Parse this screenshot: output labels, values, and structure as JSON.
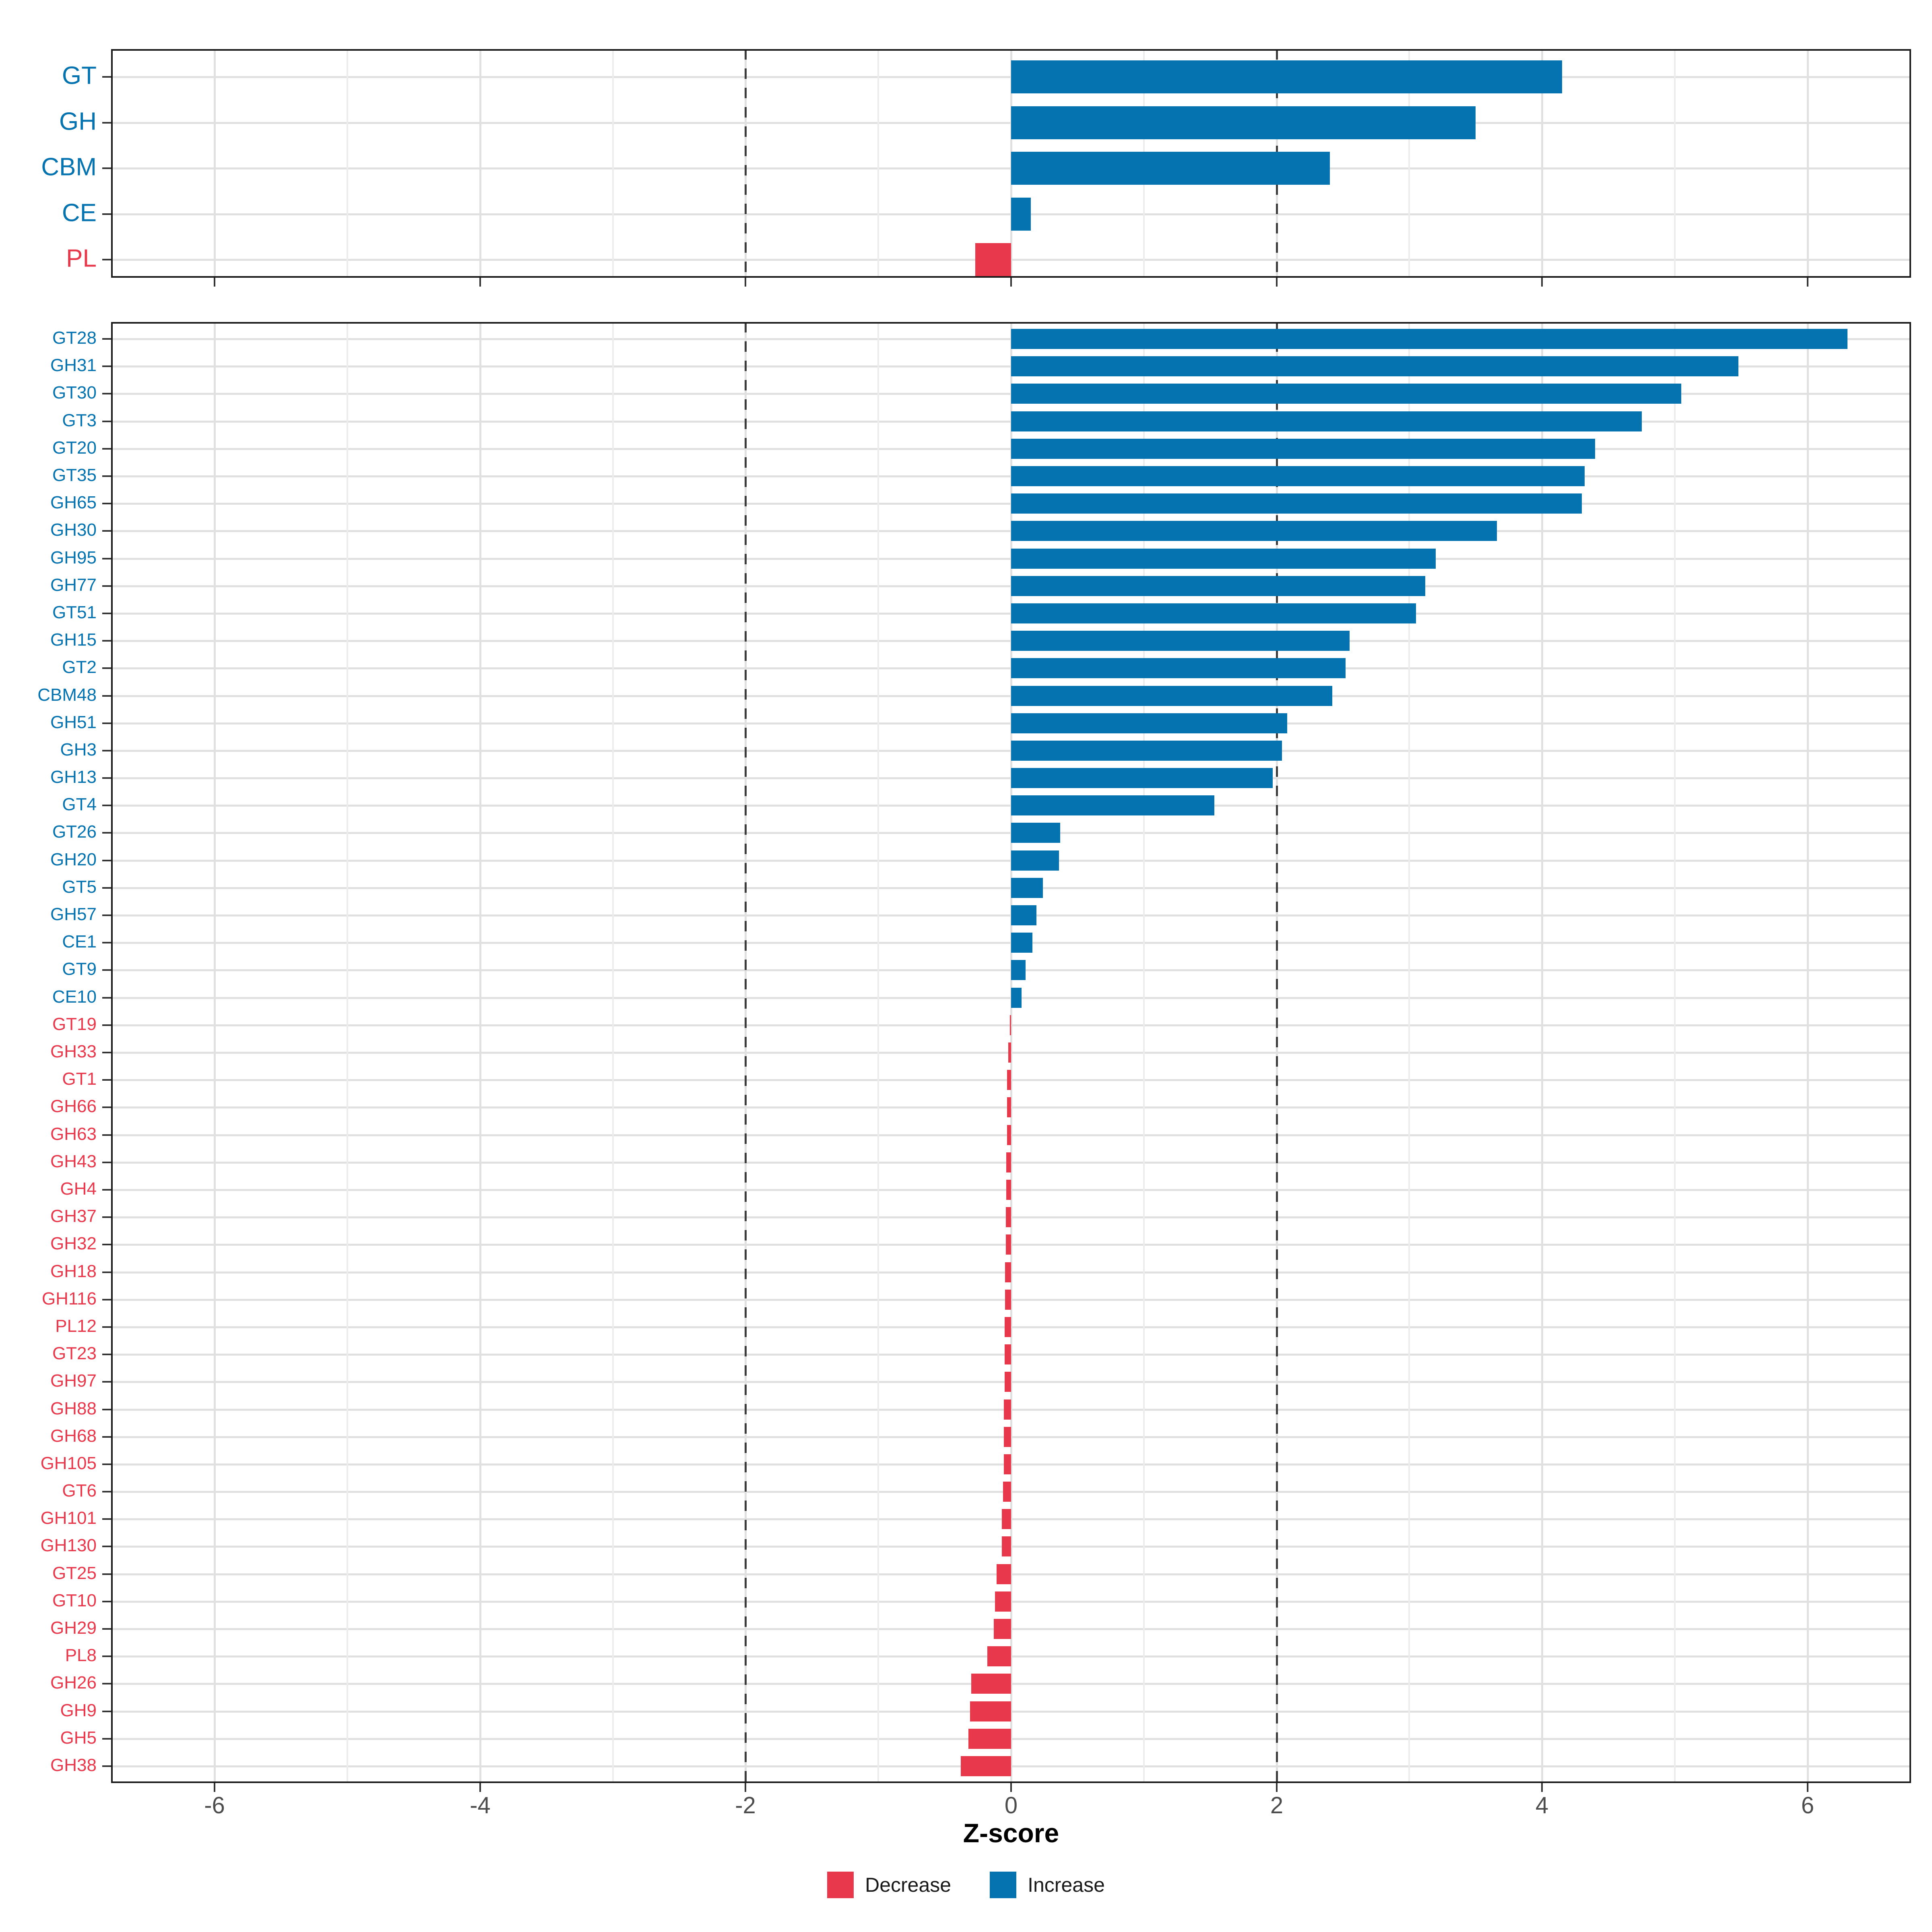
{
  "chart_data": {
    "type": "bar",
    "orientation": "horizontal",
    "xlabel": "Z-score",
    "x_ticks": [
      -6,
      -4,
      -2,
      0,
      2,
      4,
      6
    ],
    "x_minor_ticks": [
      -5,
      -3,
      -1,
      1,
      3,
      5
    ],
    "xlim": [
      -6.78,
      6.78
    ],
    "grid": true,
    "legend_position": "bottom",
    "dashed_vlines": [
      -2,
      2
    ],
    "colors": {
      "increase": "#0473B0",
      "decrease": "#E8394C",
      "axis_text": "#4D4D4D",
      "grid_major": "#E0E0E0",
      "grid_minor": "#ECECEC",
      "vline": "#3C3C3C",
      "border": "#1A1A1A"
    },
    "legend": {
      "items": [
        {
          "label": "Decrease",
          "color": "#E8394C"
        },
        {
          "label": "Increase",
          "color": "#0473B0"
        }
      ]
    },
    "panels": [
      {
        "name": "cazyme-classes",
        "rows": [
          {
            "label": "GT",
            "value": 4.15
          },
          {
            "label": "GH",
            "value": 3.5
          },
          {
            "label": "CBM",
            "value": 2.4
          },
          {
            "label": "CE",
            "value": 0.15
          },
          {
            "label": "PL",
            "value": -0.27
          }
        ]
      },
      {
        "name": "cazyme-families",
        "rows": [
          {
            "label": "GT28",
            "value": 6.3
          },
          {
            "label": "GH31",
            "value": 5.48
          },
          {
            "label": "GT30",
            "value": 5.05
          },
          {
            "label": "GT3",
            "value": 4.75
          },
          {
            "label": "GT20",
            "value": 4.4
          },
          {
            "label": "GT35",
            "value": 4.32
          },
          {
            "label": "GH65",
            "value": 4.3
          },
          {
            "label": "GH30",
            "value": 3.66
          },
          {
            "label": "GH95",
            "value": 3.2
          },
          {
            "label": "GH77",
            "value": 3.12
          },
          {
            "label": "GT51",
            "value": 3.05
          },
          {
            "label": "GH15",
            "value": 2.55
          },
          {
            "label": "GT2",
            "value": 2.52
          },
          {
            "label": "CBM48",
            "value": 2.42
          },
          {
            "label": "GH51",
            "value": 2.08
          },
          {
            "label": "GH3",
            "value": 2.04
          },
          {
            "label": "GH13",
            "value": 1.97
          },
          {
            "label": "GT4",
            "value": 1.53
          },
          {
            "label": "GT26",
            "value": 0.37
          },
          {
            "label": "GH20",
            "value": 0.36
          },
          {
            "label": "GT5",
            "value": 0.24
          },
          {
            "label": "GH57",
            "value": 0.19
          },
          {
            "label": "CE1",
            "value": 0.16
          },
          {
            "label": "GT9",
            "value": 0.11
          },
          {
            "label": "CE10",
            "value": 0.08
          },
          {
            "label": "GT19",
            "value": -0.01
          },
          {
            "label": "GH33",
            "value": -0.02
          },
          {
            "label": "GT1",
            "value": -0.03
          },
          {
            "label": "GH66",
            "value": -0.03
          },
          {
            "label": "GH63",
            "value": -0.03
          },
          {
            "label": "GH43",
            "value": -0.035
          },
          {
            "label": "GH4",
            "value": -0.035
          },
          {
            "label": "GH37",
            "value": -0.04
          },
          {
            "label": "GH32",
            "value": -0.04
          },
          {
            "label": "GH18",
            "value": -0.045
          },
          {
            "label": "GH116",
            "value": -0.045
          },
          {
            "label": "PL12",
            "value": -0.05
          },
          {
            "label": "GT23",
            "value": -0.05
          },
          {
            "label": "GH97",
            "value": -0.05
          },
          {
            "label": "GH88",
            "value": -0.055
          },
          {
            "label": "GH68",
            "value": -0.055
          },
          {
            "label": "GH105",
            "value": -0.055
          },
          {
            "label": "GT6",
            "value": -0.06
          },
          {
            "label": "GH101",
            "value": -0.07
          },
          {
            "label": "GH130",
            "value": -0.07
          },
          {
            "label": "GT25",
            "value": -0.11
          },
          {
            "label": "GT10",
            "value": -0.12
          },
          {
            "label": "GH29",
            "value": -0.13
          },
          {
            "label": "PL8",
            "value": -0.18
          },
          {
            "label": "GH26",
            "value": -0.3
          },
          {
            "label": "GH9",
            "value": -0.31
          },
          {
            "label": "GH5",
            "value": -0.32
          },
          {
            "label": "GH38",
            "value": -0.38
          }
        ]
      }
    ]
  }
}
